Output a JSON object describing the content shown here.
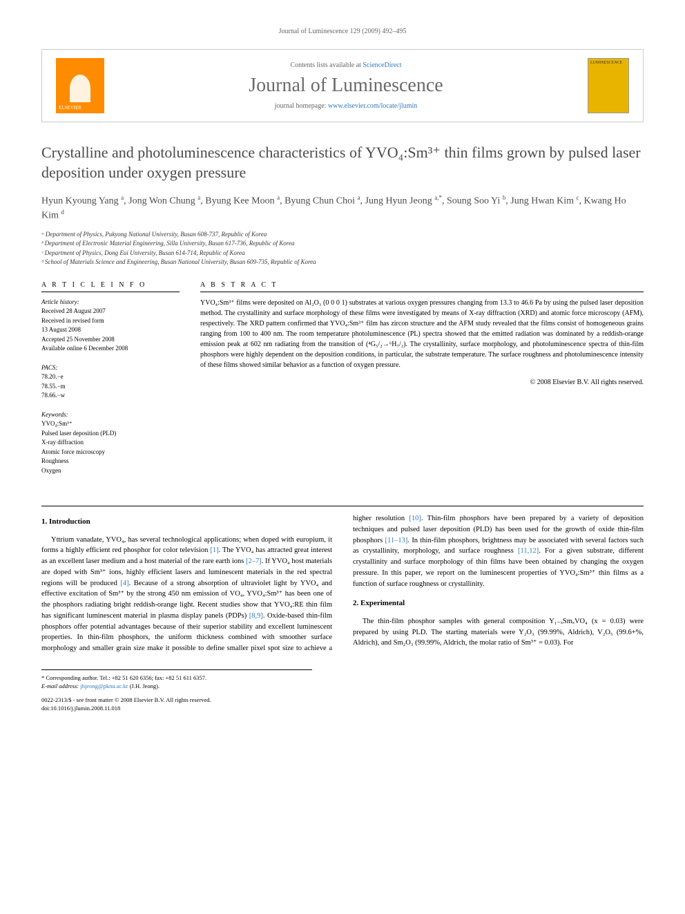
{
  "header_bar": "Journal of Luminescence 129 (2009) 492–495",
  "journal": {
    "publisher_logo": "ELSEVIER",
    "contents_prefix": "Contents lists available at ",
    "contents_link": "ScienceDirect",
    "title": "Journal of Luminescence",
    "homepage_prefix": "journal homepage: ",
    "homepage_link": "www.elsevier.com/locate/jlumin",
    "cover_label": "LUMINESCENCE"
  },
  "paper": {
    "title_html": "Crystalline and photoluminescence characteristics of YVO₄:Sm³⁺ thin films grown by pulsed laser deposition under oxygen pressure",
    "authors_html": "Hyun Kyoung Yang <sup>a</sup>, Jong Won Chung <sup>a</sup>, Byung Kee Moon <sup>a</sup>, Byung Chun Choi <sup>a</sup>, Jung Hyun Jeong <sup>a,*</sup>, Soung Soo Yi <sup>b</sup>, Jung Hwan Kim <sup>c</sup>, Kwang Ho Kim <sup>d</sup>",
    "affiliations": [
      "ᵃ Department of Physics, Pukyong National University, Busan 608-737, Republic of Korea",
      "ᵇ Department of Electronic Material Engineering, Silla University, Busan 617-736, Republic of Korea",
      "ᶜ Department of Physics, Dong Eui University, Busan 614-714, Republic of Korea",
      "ᵈ School of Materials Science and Engineering, Busan National University, Busan 609-735, Republic of Korea"
    ]
  },
  "article_info": {
    "heading": "A R T I C L E  I N F O",
    "history_label": "Article history:",
    "history": [
      "Received 28 August 2007",
      "Received in revised form",
      "13 August 2008",
      "Accepted 25 November 2008",
      "Available online 6 December 2008"
    ],
    "pacs_label": "PACS:",
    "pacs": [
      "78.20.−e",
      "78.55.−m",
      "78.66.−w"
    ],
    "keywords_label": "Keywords:",
    "keywords": [
      "YVO₄:Sm³⁺",
      "Pulsed laser deposition (PLD)",
      "X-ray diffraction",
      "Atomic force microscopy",
      "Roughness",
      "Oxygen"
    ]
  },
  "abstract": {
    "heading": "A B S T R A C T",
    "text": "YVO₄:Sm³⁺ films were deposited on Al₂O₃ (0 0 0 1) substrates at various oxygen pressures changing from 13.3 to 46.6 Pa by using the pulsed laser deposition method. The crystallinity and surface morphology of these films were investigated by means of X-ray diffraction (XRD) and atomic force microscopy (AFM), respectively. The XRD pattern confirmed that YVO₄:Sm³⁺ film has zircon structure and the AFM study revealed that the films consist of homogeneous grains ranging from 100 to 400 nm. The room temperature photoluminescence (PL) spectra showed that the emitted radiation was dominated by a reddish-orange emission peak at 602 nm radiating from the transition of (⁴G₅/₂→⁶H₇/₂). The crystallinity, surface morphology, and photoluminescence spectra of thin-film phosphors were highly dependent on the deposition conditions, in particular, the substrate temperature. The surface roughness and photoluminescence intensity of these films showed similar behavior as a function of oxygen pressure.",
    "copyright": "© 2008 Elsevier B.V. All rights reserved."
  },
  "sections": {
    "intro_heading": "1.  Introduction",
    "intro_p1_html": "Yttrium vanadate, YVO₄, has several technological applications; when doped with europium, it forms a highly efficient red phosphor for color television <a href=\"#\">[1]</a>. The YVO₄ has attracted great interest as an excellent laser medium and a host material of the rare earth ions <a href=\"#\">[2–7]</a>. If YVO₄ host materials are doped with Sm³⁺ ions, highly efficient lasers and luminescent materials in the red spectral regions will be produced <a href=\"#\">[4]</a>. Because of a strong absorption of ultraviolet light by YVO₄ and effective excitation of Sm³⁺ by the strong 450 nm emission of VO₄, YVO₄:Sm³⁺ has been one of the phosphors radiating bright reddish-orange light. Recent studies show that YVO₄:RE thin film has significant luminescent material in plasma display panels (PDPs) <a href=\"#\">[8,9]</a>. Oxide-based thin-film phosphors offer potential advantages because of their superior stability and excellent luminescent properties. In thin-film phosphors, the uniform thickness combined with smoother surface morphology and smaller grain size make it possible to define smaller pixel spot size to achieve a higher resolution <a href=\"#\">[10]</a>. Thin-film phosphors have been prepared by a variety of deposition techniques and pulsed laser deposition (PLD) has been used for the growth of oxide thin-film phosphors <a href=\"#\">[11–13]</a>. In thin-film phosphors, brightness may be associated with several factors such as crystallinity, morphology, and surface roughness <a href=\"#\">[11,12]</a>. For a given substrate, different crystallinity and surface morphology of thin films have been obtained by changing the oxygen pressure. In this paper, we report on the luminescent properties of YVO₄:Sm³⁺ thin films as a function of surface roughness or crystallinity.",
    "exp_heading": "2.  Experimental",
    "exp_p1_html": "The thin-film phosphor samples with general composition Y₁₋ₓSmₓVO₄ (x = 0.03) were prepared by using PLD. The starting materials were Y₂O₃ (99.99%, Aldrich), V₂O₅ (99.6+%, Aldrich), and Sm₂O₃ (99.99%, Aldrich, the molar ratio of Sm³⁺ = 0.03). For"
  },
  "footer": {
    "corresponding": "* Corresponding author. Tel.: +82 51 620 6356; fax: +82 51 611 6357.",
    "email_prefix": "E-mail address: ",
    "email_link": "jhjeong@pknu.ac.kr",
    "email_suffix": " (J.H. Jeong).",
    "doi_line1": "0022-2313/$ - see front matter © 2008 Elsevier B.V. All rights reserved.",
    "doi_line2": "doi:10.1016/j.jlumin.2008.11.018"
  },
  "colors": {
    "link": "#2f7ab8",
    "text": "#000000",
    "title_gray": "#4a4a4a",
    "elsevier_orange": "#ff8c00",
    "cover_yellow": "#e8b400"
  }
}
